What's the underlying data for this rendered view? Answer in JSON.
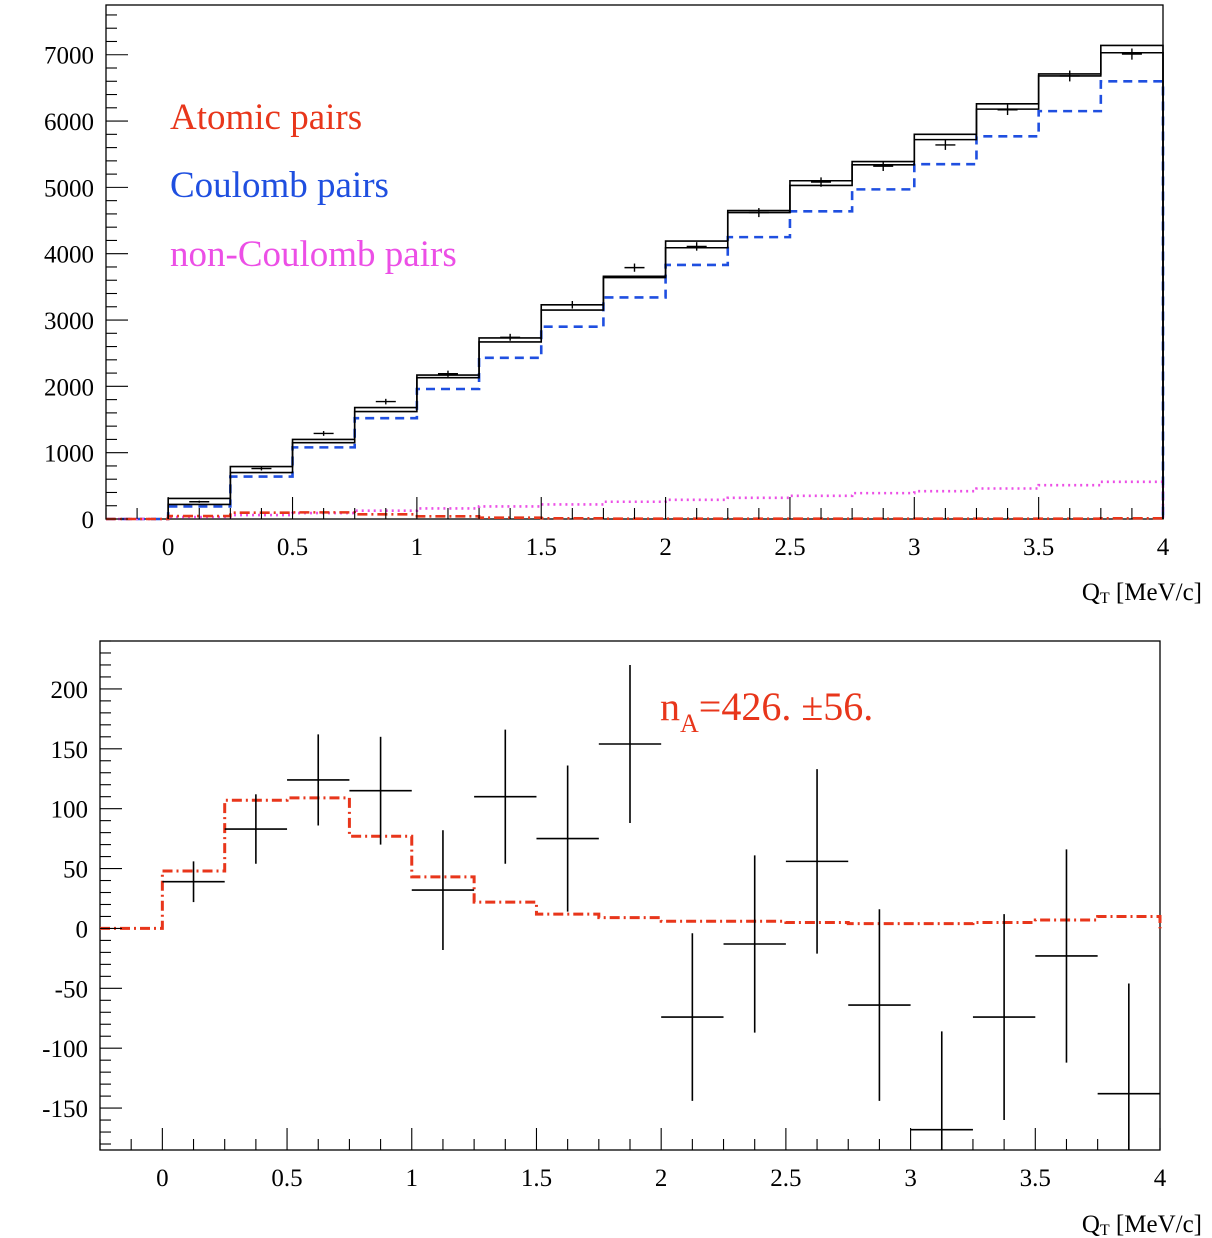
{
  "colors": {
    "atomic": "#e8361b",
    "coulomb": "#1f4fe0",
    "non_coulomb": "#ec4fe6",
    "data": "#000000"
  },
  "chart_data": [
    {
      "type": "histogram",
      "xlabel_main": "Q",
      "xlabel_sub": "T",
      "xlabel_unit": " [MeV/c]",
      "xlim": [
        -0.25,
        4
      ],
      "ylim": [
        0,
        7750
      ],
      "x_ticks": [
        0,
        0.5,
        1,
        1.5,
        2,
        2.5,
        3,
        3.5,
        4
      ],
      "x_tick_labels": [
        "0",
        "0.5",
        "1",
        "1.5",
        "2",
        "2.5",
        "3",
        "3.5",
        "4"
      ],
      "y_ticks": [
        0,
        1000,
        2000,
        3000,
        4000,
        5000,
        6000,
        7000
      ],
      "y_tick_labels": [
        "0",
        "1000",
        "2000",
        "3000",
        "4000",
        "5000",
        "6000",
        "7000"
      ],
      "legend": [
        {
          "label": "Atomic pairs",
          "color": "#e8361b"
        },
        {
          "label": "Coulomb pairs",
          "color": "#1f4fe0"
        },
        {
          "label": "non-Coulomb pairs",
          "color": "#ec4fe6"
        }
      ],
      "bin_edges": [
        0,
        0.25,
        0.5,
        0.75,
        1,
        1.25,
        1.5,
        1.75,
        2,
        2.25,
        2.5,
        2.75,
        3,
        3.25,
        3.5,
        3.75,
        4
      ],
      "bin_centers": [
        0.125,
        0.375,
        0.625,
        0.875,
        1.125,
        1.375,
        1.625,
        1.875,
        2.125,
        2.375,
        2.625,
        2.875,
        3.125,
        3.375,
        3.625,
        3.875
      ],
      "data_points": [
        260,
        760,
        1290,
        1770,
        2190,
        2740,
        3230,
        3790,
        4110,
        4620,
        5080,
        5320,
        5640,
        6170,
        6680,
        7010
      ],
      "data_errors": [
        16,
        28,
        36,
        42,
        47,
        52,
        57,
        62,
        64,
        68,
        71,
        73,
        75,
        79,
        82,
        84
      ],
      "total_fit_upper": [
        310,
        790,
        1200,
        1680,
        2170,
        2730,
        3230,
        3660,
        4190,
        4650,
        5100,
        5390,
        5800,
        6260,
        6710,
        7140
      ],
      "total_fit_lower": [
        220,
        700,
        1150,
        1620,
        2130,
        2670,
        3150,
        3640,
        4090,
        4620,
        5030,
        5340,
        5720,
        6180,
        6680,
        7030
      ],
      "series": [
        {
          "name": "Coulomb pairs",
          "style": "dashed",
          "color": "#1f4fe0",
          "values": [
            190,
            640,
            1080,
            1520,
            1960,
            2430,
            2900,
            3340,
            3830,
            4250,
            4640,
            4970,
            5350,
            5770,
            6150,
            6600
          ]
        },
        {
          "name": "non-Coulomb pairs",
          "style": "dotted",
          "color": "#ec4fe6",
          "values": [
            30,
            60,
            90,
            125,
            160,
            190,
            220,
            260,
            290,
            320,
            350,
            390,
            420,
            460,
            510,
            560
          ]
        },
        {
          "name": "Atomic pairs",
          "style": "dashdot",
          "color": "#e8361b",
          "values": [
            45,
            95,
            100,
            70,
            40,
            20,
            10,
            5,
            5,
            5,
            5,
            5,
            5,
            5,
            5,
            10
          ]
        }
      ]
    },
    {
      "type": "histogram",
      "xlabel_main": "Q",
      "xlabel_sub": "T",
      "xlabel_unit": " [MeV/c]",
      "xlim": [
        -0.25,
        4
      ],
      "ylim": [
        -185,
        240
      ],
      "x_ticks": [
        0,
        0.5,
        1,
        1.5,
        2,
        2.5,
        3,
        3.5,
        4
      ],
      "x_tick_labels": [
        "0",
        "0.5",
        "1",
        "1.5",
        "2",
        "2.5",
        "3",
        "3.5",
        "4"
      ],
      "y_ticks": [
        -150,
        -100,
        -50,
        0,
        50,
        100,
        150,
        200
      ],
      "y_tick_labels": [
        "-150",
        "-100",
        "-50",
        "0",
        "50",
        "100",
        "150",
        "200"
      ],
      "annotation": {
        "main": "n",
        "sub": "A",
        "rest": "=426. ±56.",
        "color": "#e8361b"
      },
      "bin_edges": [
        0,
        0.25,
        0.5,
        0.75,
        1,
        1.25,
        1.5,
        1.75,
        2,
        2.25,
        2.5,
        2.75,
        3,
        3.25,
        3.5,
        3.75,
        4
      ],
      "bin_centers": [
        0.125,
        0.375,
        0.625,
        0.875,
        1.125,
        1.375,
        1.625,
        1.875,
        2.125,
        2.375,
        2.625,
        2.875,
        3.125,
        3.375,
        3.625,
        3.875
      ],
      "data_points": [
        39,
        83,
        124,
        115,
        32,
        110,
        75,
        154,
        -74,
        -13,
        56,
        -64,
        -168,
        -74,
        -23,
        -138
      ],
      "data_errors": [
        17,
        29,
        38,
        45,
        50,
        56,
        61,
        66,
        70,
        74,
        77,
        80,
        82,
        86,
        89,
        92
      ],
      "atomic_fit": {
        "name": "",
        "style": "dashdot",
        "color": "#e8361b",
        "values": [
          48,
          107,
          109,
          77,
          43,
          22,
          12,
          9,
          6,
          6,
          5,
          4,
          4,
          5,
          7,
          10
        ]
      }
    }
  ]
}
